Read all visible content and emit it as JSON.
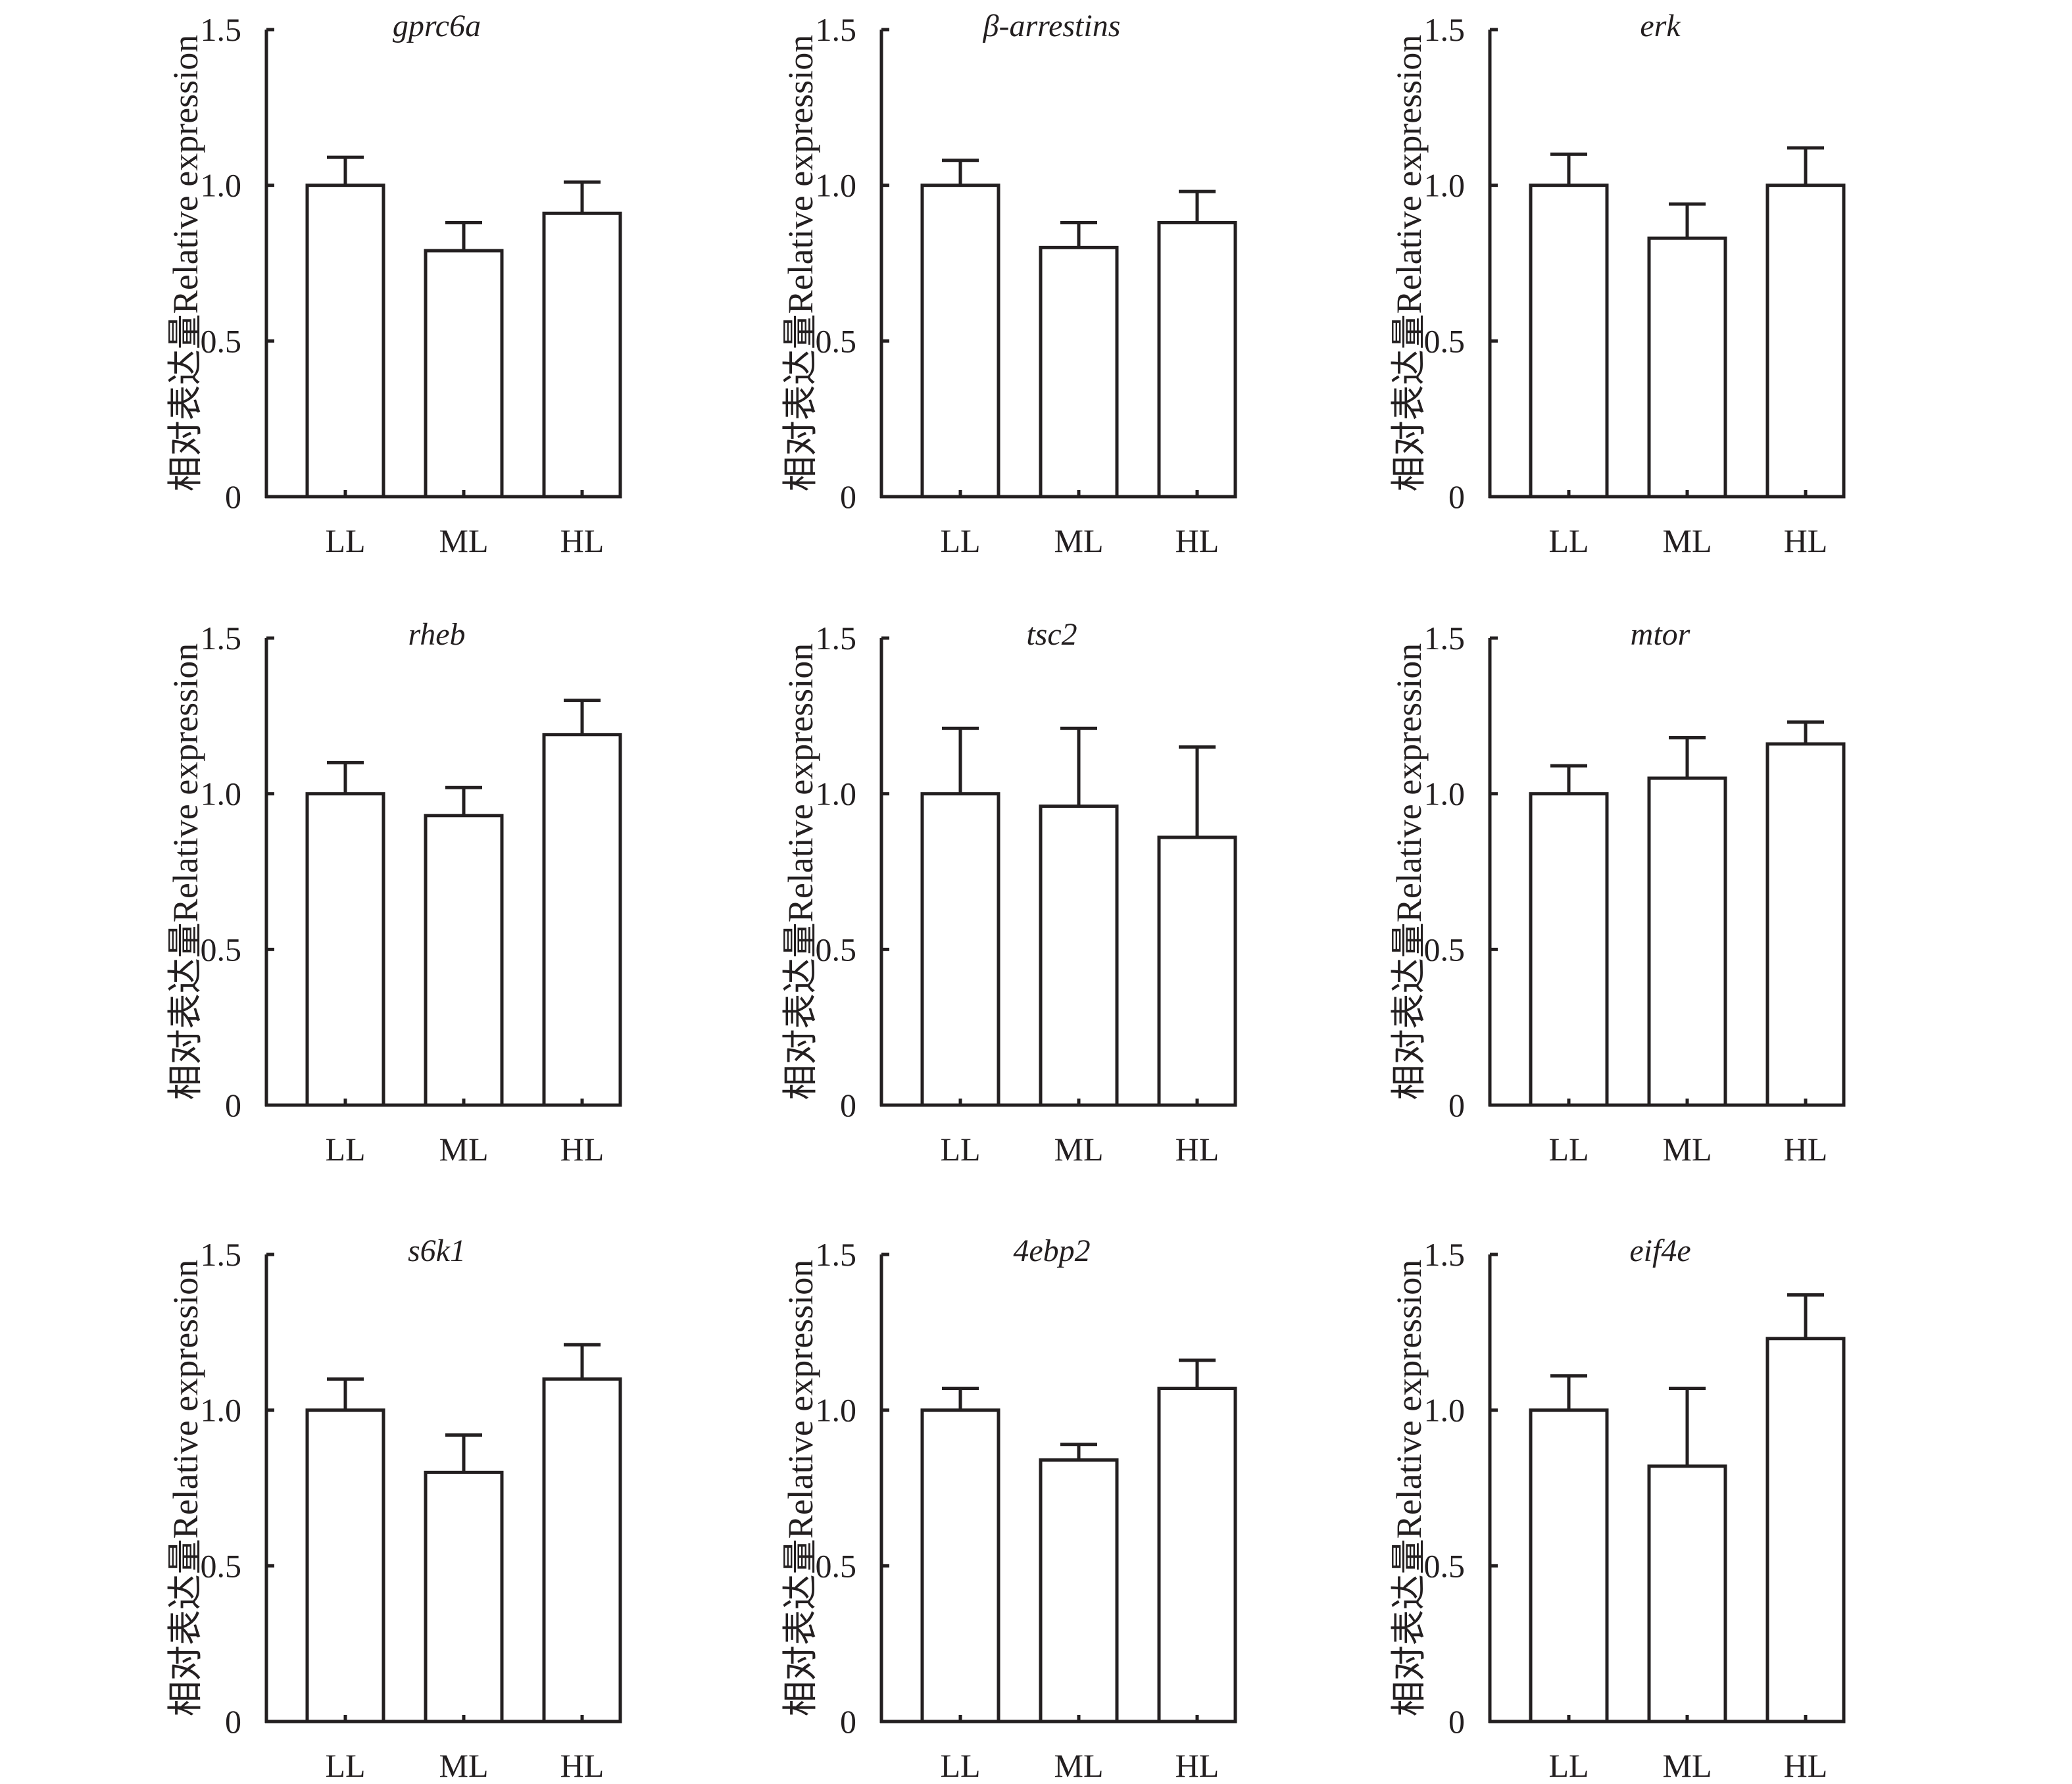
{
  "figure": {
    "ylabel": "相对表达量Relative expression",
    "categories": [
      "LL",
      "ML",
      "HL"
    ]
  },
  "chart_data": [
    {
      "type": "bar",
      "title": "gprc6a",
      "xlabel": "",
      "ylabel": "相对表达量Relative expression",
      "categories": [
        "LL",
        "ML",
        "HL"
      ],
      "values": [
        1.0,
        0.79,
        0.91
      ],
      "error_upper": [
        1.09,
        0.88,
        1.01
      ],
      "ylim": [
        0,
        1.5
      ],
      "yticks": [
        "0",
        "0.5",
        "1.0",
        "1.5"
      ],
      "grid": false
    },
    {
      "type": "bar",
      "title": "β-arrestins",
      "xlabel": "",
      "ylabel": "相对表达量Relative expression",
      "categories": [
        "LL",
        "ML",
        "HL"
      ],
      "values": [
        1.0,
        0.8,
        0.88
      ],
      "error_upper": [
        1.08,
        0.88,
        0.98
      ],
      "ylim": [
        0,
        1.5
      ],
      "yticks": [
        "0",
        "0.5",
        "1.0",
        "1.5"
      ],
      "grid": false
    },
    {
      "type": "bar",
      "title": "erk",
      "xlabel": "",
      "ylabel": "相对表达量Relative expression",
      "categories": [
        "LL",
        "ML",
        "HL"
      ],
      "values": [
        1.0,
        0.83,
        1.0
      ],
      "error_upper": [
        1.1,
        0.94,
        1.12
      ],
      "ylim": [
        0,
        1.5
      ],
      "yticks": [
        "0",
        "0.5",
        "1.0",
        "1.5"
      ],
      "grid": false
    },
    {
      "type": "bar",
      "title": "rheb",
      "xlabel": "",
      "ylabel": "相对表达量Relative expression",
      "categories": [
        "LL",
        "ML",
        "HL"
      ],
      "values": [
        1.0,
        0.93,
        1.19
      ],
      "error_upper": [
        1.1,
        1.02,
        1.3
      ],
      "ylim": [
        0,
        1.5
      ],
      "yticks": [
        "0",
        "0.5",
        "1.0",
        "1.5"
      ],
      "grid": false
    },
    {
      "type": "bar",
      "title": "tsc2",
      "xlabel": "",
      "ylabel": "相对表达量Relative expression",
      "categories": [
        "LL",
        "ML",
        "HL"
      ],
      "values": [
        1.0,
        0.96,
        0.86
      ],
      "error_upper": [
        1.21,
        1.21,
        1.15
      ],
      "ylim": [
        0,
        1.5
      ],
      "yticks": [
        "0",
        "0.5",
        "1.0",
        "1.5"
      ],
      "grid": false
    },
    {
      "type": "bar",
      "title": "mtor",
      "xlabel": "",
      "ylabel": "相对表达量Relative expression",
      "categories": [
        "LL",
        "ML",
        "HL"
      ],
      "values": [
        1.0,
        1.05,
        1.16
      ],
      "error_upper": [
        1.09,
        1.18,
        1.23
      ],
      "ylim": [
        0,
        1.5
      ],
      "yticks": [
        "0",
        "0.5",
        "1.0",
        "1.5"
      ],
      "grid": false
    },
    {
      "type": "bar",
      "title": "s6k1",
      "xlabel": "",
      "ylabel": "相对表达量Relative expression",
      "categories": [
        "LL",
        "ML",
        "HL"
      ],
      "values": [
        1.0,
        0.8,
        1.1
      ],
      "error_upper": [
        1.1,
        0.92,
        1.21
      ],
      "ylim": [
        0,
        1.5
      ],
      "yticks": [
        "0",
        "0.5",
        "1.0",
        "1.5"
      ],
      "grid": false
    },
    {
      "type": "bar",
      "title": "4ebp2",
      "xlabel": "",
      "ylabel": "相对表达量Relative expression",
      "categories": [
        "LL",
        "ML",
        "HL"
      ],
      "values": [
        1.0,
        0.84,
        1.07
      ],
      "error_upper": [
        1.07,
        0.89,
        1.16
      ],
      "ylim": [
        0,
        1.5
      ],
      "yticks": [
        "0",
        "0.5",
        "1.0",
        "1.5"
      ],
      "grid": false
    },
    {
      "type": "bar",
      "title": "eif4e",
      "xlabel": "",
      "ylabel": "相对表达量Relative expression",
      "categories": [
        "LL",
        "ML",
        "HL"
      ],
      "values": [
        1.0,
        0.82,
        1.23
      ],
      "error_upper": [
        1.11,
        1.07,
        1.37
      ],
      "ylim": [
        0,
        1.5
      ],
      "yticks": [
        "0",
        "0.5",
        "1.0",
        "1.5"
      ],
      "grid": false
    }
  ]
}
